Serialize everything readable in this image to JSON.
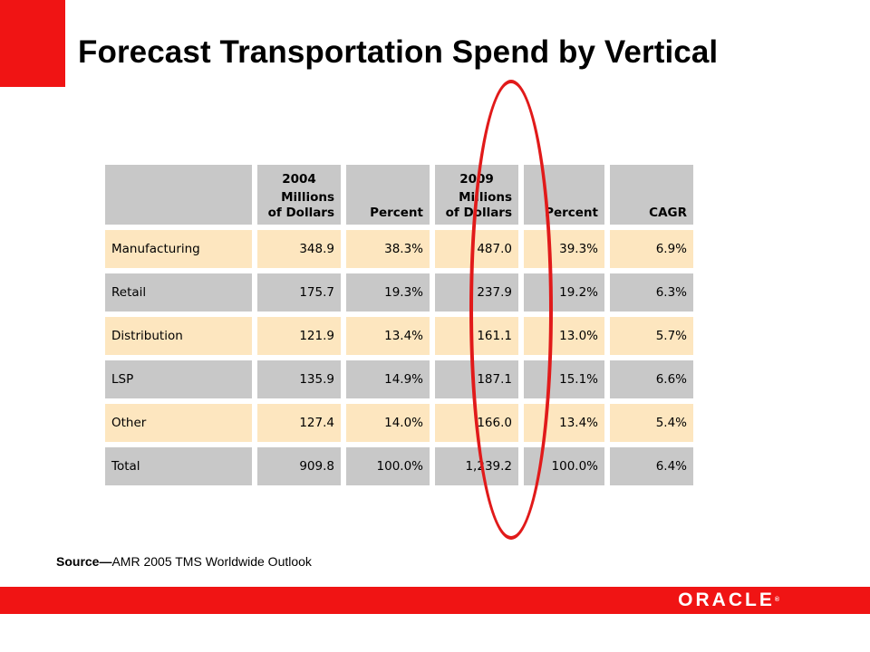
{
  "slide": {
    "title": "Forecast Transportation Spend by Vertical",
    "source_label": "Source—",
    "source_text": "AMR 2005 TMS Worldwide Outlook",
    "logo_text": "ORACLE"
  },
  "table": {
    "headers": [
      {
        "top": "",
        "bottom": ""
      },
      {
        "top": "2004",
        "bottom": "Millions of Dollars"
      },
      {
        "top": "",
        "bottom": "Percent"
      },
      {
        "top": "2009",
        "bottom": "Millions of Dollars"
      },
      {
        "top": "",
        "bottom": "Percent"
      },
      {
        "top": "",
        "bottom": "CAGR"
      }
    ],
    "rows": [
      [
        "Manufacturing",
        "348.9",
        "38.3%",
        "487.0",
        "39.3%",
        "6.9%"
      ],
      [
        "Retail",
        "175.7",
        "19.3%",
        "237.9",
        "19.2%",
        "6.3%"
      ],
      [
        "Distribution",
        "121.9",
        "13.4%",
        "161.1",
        "13.0%",
        "5.7%"
      ],
      [
        "LSP",
        "135.9",
        "14.9%",
        "187.1",
        "15.1%",
        "6.6%"
      ],
      [
        "Other",
        "127.4",
        "14.0%",
        "166.0",
        "13.4%",
        "5.4%"
      ],
      [
        "Total",
        "909.8",
        "100.0%",
        "1,239.2",
        "100.0%",
        "6.4%"
      ]
    ]
  },
  "colors": {
    "brand_red": "#f01414",
    "row_tan": "#fde6bf",
    "row_gray": "#c8c8c8",
    "highlight_ellipse": "#e11a1a"
  }
}
